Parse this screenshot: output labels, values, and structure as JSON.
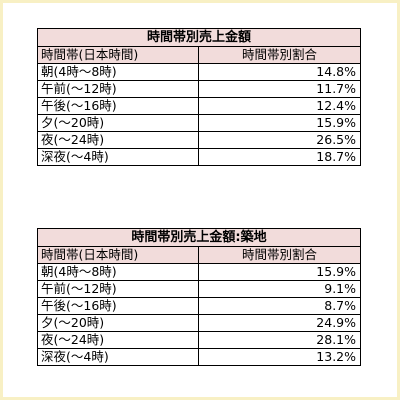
{
  "tables": [
    {
      "title": "時間帯別売上金額",
      "headers": [
        "時間帯(日本時間)",
        "時間帯別割合"
      ],
      "rows": [
        {
          "label": "朝(4時～8時)",
          "value": "14.8%"
        },
        {
          "label": "午前(～12時)",
          "value": "11.7%"
        },
        {
          "label": "午後(～16時)",
          "value": "12.4%"
        },
        {
          "label": "夕(～20時)",
          "value": "15.9%"
        },
        {
          "label": "夜(～24時)",
          "value": "26.5%"
        },
        {
          "label": "深夜(～4時)",
          "value": "18.7%"
        }
      ]
    },
    {
      "title": "時間帯別売上金額:築地",
      "headers": [
        "時間帯(日本時間)",
        "時間帯別割合"
      ],
      "rows": [
        {
          "label": "朝(4時～8時)",
          "value": "15.9%"
        },
        {
          "label": "午前(～12時)",
          "value": "9.1%"
        },
        {
          "label": "午後(～16時)",
          "value": "8.7%"
        },
        {
          "label": "夕(～20時)",
          "value": "24.9%"
        },
        {
          "label": "夜(～24時)",
          "value": "28.1%"
        },
        {
          "label": "深夜(～4時)",
          "value": "13.2%"
        }
      ]
    }
  ],
  "colors": {
    "header_fill": "#f2dcdb",
    "frame_border": "#f8f0c4"
  }
}
